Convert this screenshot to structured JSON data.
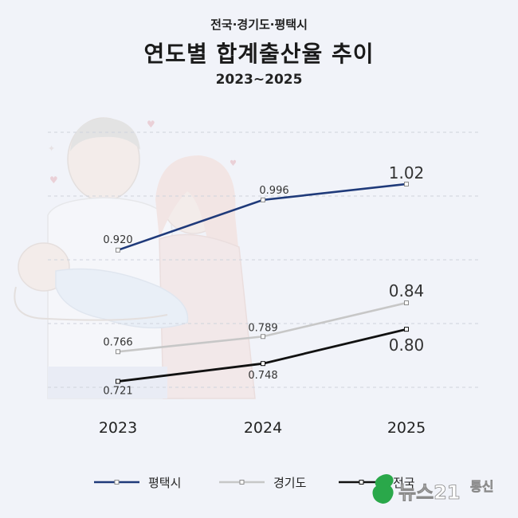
{
  "header": {
    "supertitle": "전국·경기도·평택시",
    "title": "연도별 합계출산율 추이",
    "subtitle": "2023~2025"
  },
  "watermark": {
    "text_main": "뉴스21",
    "text_side": "통신"
  },
  "colors": {
    "pyeongtaek": "#1f3a7a",
    "gyeonggi": "#c7c7c7",
    "national": "#111111",
    "background": "#f1f3f9",
    "watermark_green": "#2aa84a"
  },
  "chart_data": {
    "type": "line",
    "categories": [
      "2023",
      "2024",
      "2025"
    ],
    "series": [
      {
        "name": "평택시",
        "values": [
          0.92,
          0.996,
          1.02
        ],
        "labels": [
          "0.920",
          "0.996",
          "1.02"
        ]
      },
      {
        "name": "경기도",
        "values": [
          0.766,
          0.789,
          0.84
        ],
        "labels": [
          "0.766",
          "0.789",
          "0.84"
        ]
      },
      {
        "name": "전국",
        "values": [
          0.721,
          0.748,
          0.8
        ],
        "labels": [
          "0.721",
          "0.748",
          "0.80"
        ]
      }
    ],
    "grid": "horizontal-dashed",
    "legend": "bottom"
  }
}
